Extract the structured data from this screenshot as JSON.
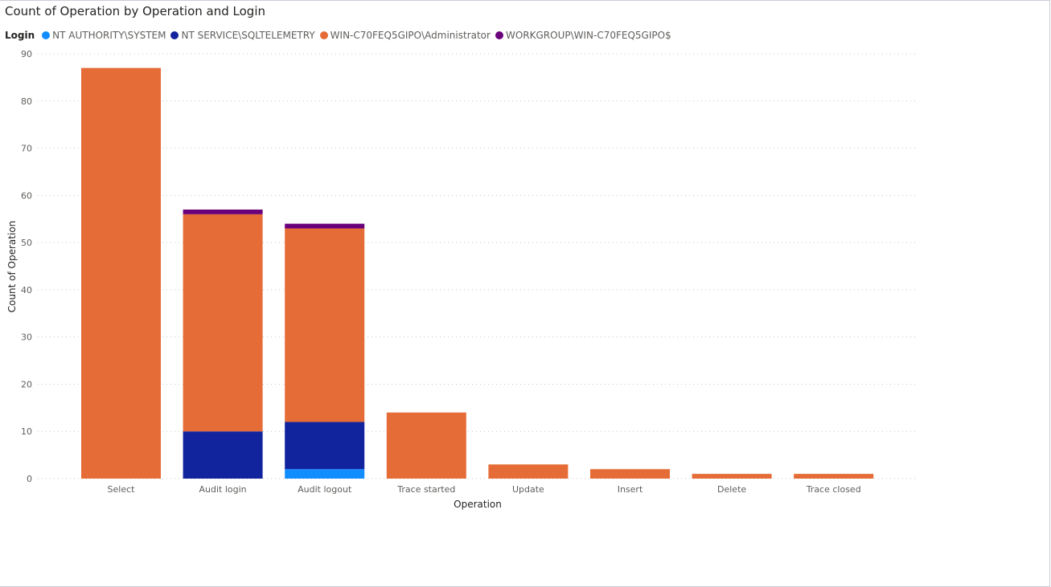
{
  "chart_data": {
    "type": "bar",
    "stacked": true,
    "title": "Count of Operation by Operation and Login",
    "legend": {
      "title": "Login",
      "placement": "top-left"
    },
    "xlabel": "Operation",
    "ylabel": "Count of Operation",
    "ylim": [
      0,
      90
    ],
    "yticks": [
      0,
      10,
      20,
      30,
      40,
      50,
      60,
      70,
      80,
      90
    ],
    "grid": true,
    "categories": [
      "Select",
      "Audit login",
      "Audit logout",
      "Trace started",
      "Update",
      "Insert",
      "Delete",
      "Trace closed"
    ],
    "series": [
      {
        "name": "NT AUTHORITY\\SYSTEM",
        "color": "#118dff",
        "values": [
          0,
          0,
          2,
          0,
          0,
          0,
          0,
          0
        ]
      },
      {
        "name": "NT SERVICE\\SQLTELEMETRY",
        "color": "#12239e",
        "values": [
          0,
          10,
          10,
          0,
          0,
          0,
          0,
          0
        ]
      },
      {
        "name": "WIN-C70FEQ5GIPO\\Administrator",
        "color": "#e66c37",
        "values": [
          87,
          46,
          41,
          14,
          3,
          2,
          1,
          1
        ]
      },
      {
        "name": "WORKGROUP\\WIN-C70FEQ5GIPO$",
        "color": "#6b007b",
        "values": [
          0,
          1,
          1,
          0,
          0,
          0,
          0,
          0
        ]
      }
    ]
  }
}
